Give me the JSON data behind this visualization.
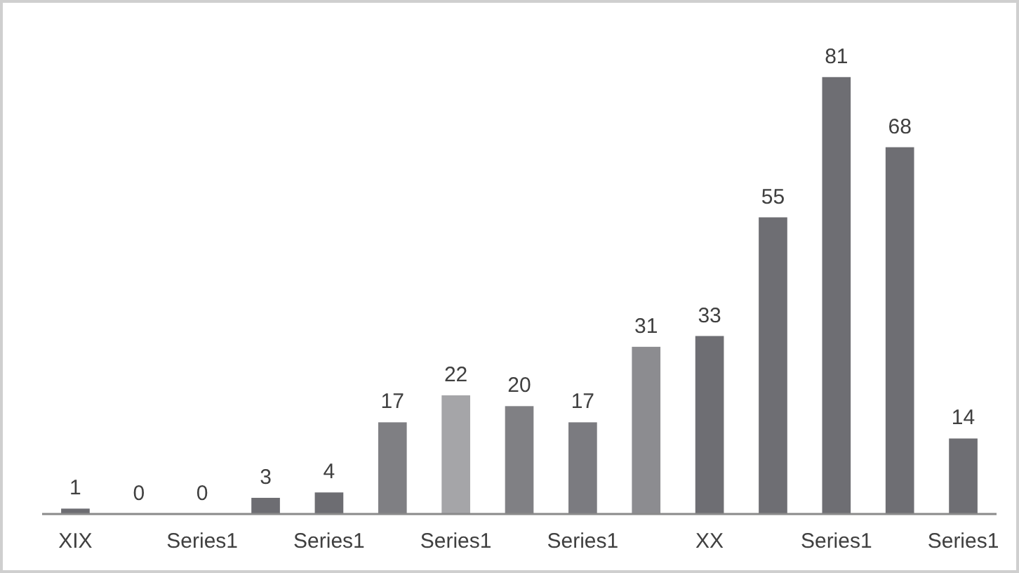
{
  "chart_data": {
    "type": "bar",
    "categories": [
      "XIX",
      null,
      "Series1",
      null,
      "Series1",
      null,
      "Series1",
      null,
      "Series1",
      null,
      "XX",
      null,
      "Series1",
      null,
      "Series1"
    ],
    "values": [
      1,
      0,
      0,
      3,
      4,
      17,
      22,
      20,
      17,
      31,
      33,
      55,
      81,
      68,
      14
    ],
    "colors": [
      "#6d6d72",
      "#6d6d72",
      "#6d6d72",
      "#6d6d72",
      "#6d6d72",
      "#7f7f83",
      "#a5a5a8",
      "#808084",
      "#7b7b80",
      "#8c8c90",
      "#6e6e73",
      "#6e6e73",
      "#6e6e73",
      "#6e6e73",
      "#6e6e73"
    ],
    "data_labels": true,
    "tick_labels": "x"
  }
}
